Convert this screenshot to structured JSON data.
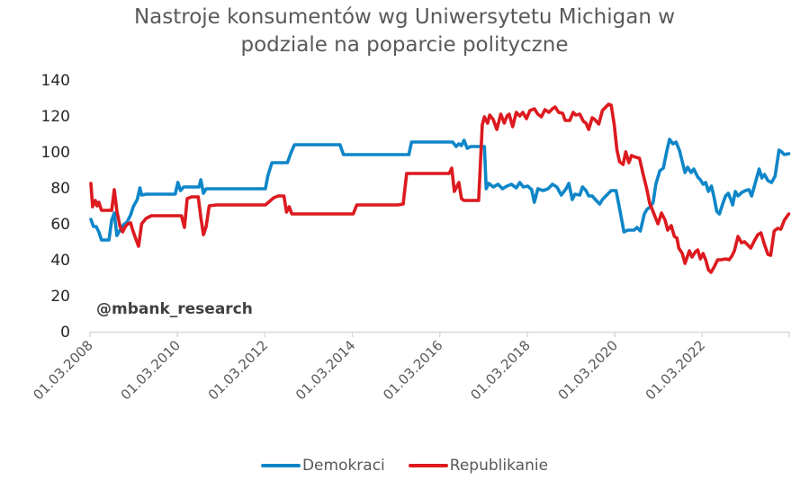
{
  "chart_data": {
    "type": "line",
    "title": "Nastroje konsumentów wg Uniwersytetu Michigan w podziale na poparcie polityczne",
    "title_lines": [
      "Nastroje konsumentów wg Uniwersytetu Michigan w",
      "podziale na poparcie polityczne"
    ],
    "xlabel": "",
    "ylabel": "",
    "ylim": [
      0,
      140
    ],
    "yticks": [
      0,
      20,
      40,
      60,
      80,
      100,
      120,
      140
    ],
    "xticks": [
      "01.03.2008",
      "01.03.2010",
      "01.03.2012",
      "01.03.2014",
      "01.03.2016",
      "01.03.2018",
      "01.03.2020",
      "01.03.2022"
    ],
    "xrange": [
      2008.17,
      2024.0
    ],
    "grid": false,
    "legend_position": "bottom",
    "annotation": "@mbank_research",
    "series": [
      {
        "name": "Demokraci",
        "color": "#0E86C8",
        "points": [
          [
            2008.19,
            62.5
          ],
          [
            2008.25,
            58.5
          ],
          [
            2008.31,
            58.5
          ],
          [
            2008.37,
            55.5
          ],
          [
            2008.43,
            51
          ],
          [
            2008.54,
            51
          ],
          [
            2008.6,
            51
          ],
          [
            2008.66,
            62
          ],
          [
            2008.72,
            66
          ],
          [
            2008.78,
            53.5
          ],
          [
            2008.85,
            56.5
          ],
          [
            2008.93,
            59.5
          ],
          [
            2009.01,
            61
          ],
          [
            2009.09,
            65
          ],
          [
            2009.15,
            69.5
          ],
          [
            2009.24,
            73.5
          ],
          [
            2009.3,
            80
          ],
          [
            2009.34,
            76
          ],
          [
            2009.44,
            76.5
          ],
          [
            2009.79,
            76.5
          ],
          [
            2010.1,
            76.5
          ],
          [
            2010.16,
            83
          ],
          [
            2010.22,
            78.5
          ],
          [
            2010.29,
            80.5
          ],
          [
            2010.51,
            80.5
          ],
          [
            2010.64,
            80.5
          ],
          [
            2010.68,
            84.5
          ],
          [
            2010.74,
            77
          ],
          [
            2010.8,
            79.5
          ],
          [
            2011.03,
            79.5
          ],
          [
            2011.65,
            79.5
          ],
          [
            2012.14,
            79.5
          ],
          [
            2012.2,
            87
          ],
          [
            2012.29,
            94
          ],
          [
            2012.47,
            94
          ],
          [
            2012.64,
            94
          ],
          [
            2012.72,
            99.5
          ],
          [
            2012.8,
            104
          ],
          [
            2013.09,
            104
          ],
          [
            2013.81,
            104
          ],
          [
            2013.83,
            104
          ],
          [
            2013.91,
            98.5
          ],
          [
            2013.97,
            98.5
          ],
          [
            2014.32,
            98.5
          ],
          [
            2015.39,
            98.5
          ],
          [
            2015.45,
            105.5
          ],
          [
            2015.97,
            105.5
          ],
          [
            2016.38,
            105.5
          ],
          [
            2016.46,
            103
          ],
          [
            2016.52,
            104.5
          ],
          [
            2016.58,
            103.5
          ],
          [
            2016.64,
            106.5
          ],
          [
            2016.71,
            102
          ],
          [
            2016.79,
            103
          ],
          [
            2017.1,
            103
          ],
          [
            2017.14,
            79.5
          ],
          [
            2017.2,
            82.5
          ],
          [
            2017.3,
            80.5
          ],
          [
            2017.41,
            82
          ],
          [
            2017.51,
            79.5
          ],
          [
            2017.61,
            81
          ],
          [
            2017.71,
            82
          ],
          [
            2017.82,
            80
          ],
          [
            2017.9,
            83
          ],
          [
            2017.98,
            80.5
          ],
          [
            2018.08,
            81
          ],
          [
            2018.17,
            79
          ],
          [
            2018.23,
            72
          ],
          [
            2018.31,
            79.5
          ],
          [
            2018.43,
            78.5
          ],
          [
            2018.54,
            79.5
          ],
          [
            2018.64,
            82
          ],
          [
            2018.74,
            80.5
          ],
          [
            2018.84,
            76
          ],
          [
            2018.95,
            79.5
          ],
          [
            2019.01,
            82.5
          ],
          [
            2019.09,
            73.5
          ],
          [
            2019.15,
            76.5
          ],
          [
            2019.26,
            76
          ],
          [
            2019.32,
            80.5
          ],
          [
            2019.4,
            78.5
          ],
          [
            2019.46,
            75.5
          ],
          [
            2019.54,
            75.5
          ],
          [
            2019.63,
            73
          ],
          [
            2019.71,
            71
          ],
          [
            2019.77,
            73.5
          ],
          [
            2019.87,
            76
          ],
          [
            2019.97,
            78.5
          ],
          [
            2020.08,
            78.5
          ],
          [
            2020.16,
            68.5
          ],
          [
            2020.26,
            55.5
          ],
          [
            2020.35,
            56.5
          ],
          [
            2020.43,
            56.5
          ],
          [
            2020.49,
            56.5
          ],
          [
            2020.55,
            58
          ],
          [
            2020.63,
            56
          ],
          [
            2020.72,
            65.5
          ],
          [
            2020.78,
            68
          ],
          [
            2020.86,
            69.5
          ],
          [
            2020.92,
            72
          ],
          [
            2020.98,
            82
          ],
          [
            2021.07,
            89.5
          ],
          [
            2021.15,
            91
          ],
          [
            2021.23,
            100.5
          ],
          [
            2021.29,
            107
          ],
          [
            2021.37,
            104.5
          ],
          [
            2021.44,
            105.5
          ],
          [
            2021.52,
            100.5
          ],
          [
            2021.58,
            94.5
          ],
          [
            2021.64,
            88.5
          ],
          [
            2021.7,
            91.5
          ],
          [
            2021.78,
            88.5
          ],
          [
            2021.84,
            90.5
          ],
          [
            2021.93,
            86
          ],
          [
            2021.99,
            84.5
          ],
          [
            2022.05,
            82
          ],
          [
            2022.11,
            83
          ],
          [
            2022.17,
            78
          ],
          [
            2022.24,
            81
          ],
          [
            2022.3,
            74.5
          ],
          [
            2022.36,
            67
          ],
          [
            2022.42,
            65.5
          ],
          [
            2022.5,
            71.5
          ],
          [
            2022.56,
            75.5
          ],
          [
            2022.62,
            77
          ],
          [
            2022.68,
            73.5
          ],
          [
            2022.72,
            70.5
          ],
          [
            2022.78,
            78
          ],
          [
            2022.84,
            75.5
          ],
          [
            2022.93,
            77.5
          ],
          [
            2023.01,
            78.5
          ],
          [
            2023.09,
            79
          ],
          [
            2023.15,
            75.5
          ],
          [
            2023.24,
            83.5
          ],
          [
            2023.32,
            90.5
          ],
          [
            2023.38,
            85.5
          ],
          [
            2023.44,
            87.5
          ],
          [
            2023.52,
            84
          ],
          [
            2023.6,
            83
          ],
          [
            2023.68,
            86.5
          ],
          [
            2023.77,
            101
          ],
          [
            2023.83,
            100
          ],
          [
            2023.89,
            98.5
          ],
          [
            2023.99,
            99
          ]
        ]
      },
      {
        "name": "Republikanie",
        "color": "#DC1A1F",
        "points": [
          [
            2008.19,
            82.5
          ],
          [
            2008.23,
            69.5
          ],
          [
            2008.29,
            73
          ],
          [
            2008.33,
            70
          ],
          [
            2008.37,
            72
          ],
          [
            2008.43,
            67.5
          ],
          [
            2008.52,
            67.5
          ],
          [
            2008.6,
            67.5
          ],
          [
            2008.66,
            67.5
          ],
          [
            2008.72,
            79
          ],
          [
            2008.78,
            67
          ],
          [
            2008.85,
            58.5
          ],
          [
            2008.91,
            55.5
          ],
          [
            2008.97,
            58.5
          ],
          [
            2009.03,
            60
          ],
          [
            2009.09,
            60.5
          ],
          [
            2009.13,
            57
          ],
          [
            2009.21,
            51.5
          ],
          [
            2009.27,
            47.5
          ],
          [
            2009.34,
            60
          ],
          [
            2009.44,
            63
          ],
          [
            2009.56,
            64.5
          ],
          [
            2009.79,
            64.5
          ],
          [
            2010.1,
            64.5
          ],
          [
            2010.24,
            64.5
          ],
          [
            2010.31,
            58
          ],
          [
            2010.37,
            74
          ],
          [
            2010.47,
            75
          ],
          [
            2010.62,
            75
          ],
          [
            2010.68,
            63.5
          ],
          [
            2010.74,
            54
          ],
          [
            2010.8,
            58.5
          ],
          [
            2010.87,
            70
          ],
          [
            2011.03,
            70.5
          ],
          [
            2011.65,
            70.5
          ],
          [
            2012.14,
            70.5
          ],
          [
            2012.33,
            74.5
          ],
          [
            2012.43,
            75.5
          ],
          [
            2012.56,
            75.5
          ],
          [
            2012.62,
            66.5
          ],
          [
            2012.68,
            69.5
          ],
          [
            2012.74,
            65.5
          ],
          [
            2013.09,
            65.5
          ],
          [
            2013.81,
            65.5
          ],
          [
            2013.95,
            65.5
          ],
          [
            2014.13,
            65.5
          ],
          [
            2014.21,
            70.5
          ],
          [
            2014.32,
            70.5
          ],
          [
            2015.14,
            70.5
          ],
          [
            2015.26,
            71
          ],
          [
            2015.34,
            88
          ],
          [
            2015.64,
            88
          ],
          [
            2016.12,
            88
          ],
          [
            2016.3,
            88
          ],
          [
            2016.36,
            91
          ],
          [
            2016.42,
            78
          ],
          [
            2016.52,
            83
          ],
          [
            2016.58,
            74
          ],
          [
            2016.64,
            73
          ],
          [
            2016.79,
            73
          ],
          [
            2016.91,
            73
          ],
          [
            2016.97,
            73
          ],
          [
            2017.05,
            115
          ],
          [
            2017.1,
            119.5
          ],
          [
            2017.17,
            116
          ],
          [
            2017.22,
            120.5
          ],
          [
            2017.3,
            118
          ],
          [
            2017.38,
            112.5
          ],
          [
            2017.47,
            121
          ],
          [
            2017.55,
            116
          ],
          [
            2017.61,
            120
          ],
          [
            2017.66,
            121
          ],
          [
            2017.74,
            114
          ],
          [
            2017.82,
            122
          ],
          [
            2017.9,
            120
          ],
          [
            2017.97,
            122
          ],
          [
            2018.05,
            118.5
          ],
          [
            2018.13,
            123
          ],
          [
            2018.23,
            124
          ],
          [
            2018.31,
            121
          ],
          [
            2018.39,
            119.5
          ],
          [
            2018.47,
            123.5
          ],
          [
            2018.56,
            122
          ],
          [
            2018.64,
            124
          ],
          [
            2018.7,
            125
          ],
          [
            2018.78,
            122
          ],
          [
            2018.87,
            121.5
          ],
          [
            2018.93,
            117.5
          ],
          [
            2019.03,
            117.5
          ],
          [
            2019.11,
            122
          ],
          [
            2019.17,
            120.5
          ],
          [
            2019.26,
            121
          ],
          [
            2019.34,
            117
          ],
          [
            2019.4,
            116
          ],
          [
            2019.46,
            112.5
          ],
          [
            2019.54,
            119
          ],
          [
            2019.6,
            118
          ],
          [
            2019.69,
            115.5
          ],
          [
            2019.77,
            123
          ],
          [
            2019.85,
            125
          ],
          [
            2019.91,
            126.5
          ],
          [
            2019.97,
            126
          ],
          [
            2020.04,
            115
          ],
          [
            2020.1,
            101
          ],
          [
            2020.16,
            94.5
          ],
          [
            2020.24,
            93
          ],
          [
            2020.3,
            100
          ],
          [
            2020.37,
            94
          ],
          [
            2020.43,
            98
          ],
          [
            2020.53,
            97
          ],
          [
            2020.61,
            96.5
          ],
          [
            2020.69,
            88
          ],
          [
            2020.78,
            79
          ],
          [
            2020.84,
            71.5
          ],
          [
            2020.9,
            68
          ],
          [
            2020.97,
            63.5
          ],
          [
            2021.03,
            60
          ],
          [
            2021.11,
            66
          ],
          [
            2021.19,
            62
          ],
          [
            2021.25,
            56.5
          ],
          [
            2021.33,
            59
          ],
          [
            2021.4,
            53
          ],
          [
            2021.46,
            52
          ],
          [
            2021.5,
            46.5
          ],
          [
            2021.58,
            43.5
          ],
          [
            2021.64,
            38
          ],
          [
            2021.74,
            45
          ],
          [
            2021.8,
            41.5
          ],
          [
            2021.88,
            44.5
          ],
          [
            2021.93,
            45.5
          ],
          [
            2021.99,
            40.5
          ],
          [
            2022.05,
            43.5
          ],
          [
            2022.11,
            40
          ],
          [
            2022.17,
            34.5
          ],
          [
            2022.23,
            33
          ],
          [
            2022.3,
            36
          ],
          [
            2022.38,
            40
          ],
          [
            2022.46,
            40
          ],
          [
            2022.56,
            40.5
          ],
          [
            2022.64,
            40
          ],
          [
            2022.7,
            42
          ],
          [
            2022.76,
            45
          ],
          [
            2022.84,
            53
          ],
          [
            2022.92,
            49.5
          ],
          [
            2022.99,
            50
          ],
          [
            2023.05,
            48.5
          ],
          [
            2023.13,
            46.5
          ],
          [
            2023.21,
            50.5
          ],
          [
            2023.29,
            54
          ],
          [
            2023.36,
            55
          ],
          [
            2023.44,
            48.5
          ],
          [
            2023.52,
            43
          ],
          [
            2023.58,
            42.5
          ],
          [
            2023.66,
            56
          ],
          [
            2023.74,
            57.5
          ],
          [
            2023.81,
            57
          ],
          [
            2023.89,
            62
          ],
          [
            2023.99,
            65.5
          ]
        ]
      }
    ]
  },
  "legend": {
    "items": [
      {
        "label": "Demokraci",
        "color": "#0E86C8"
      },
      {
        "label": "Republikanie",
        "color": "#DC1A1F"
      }
    ]
  },
  "watermark": "@mbank_research"
}
